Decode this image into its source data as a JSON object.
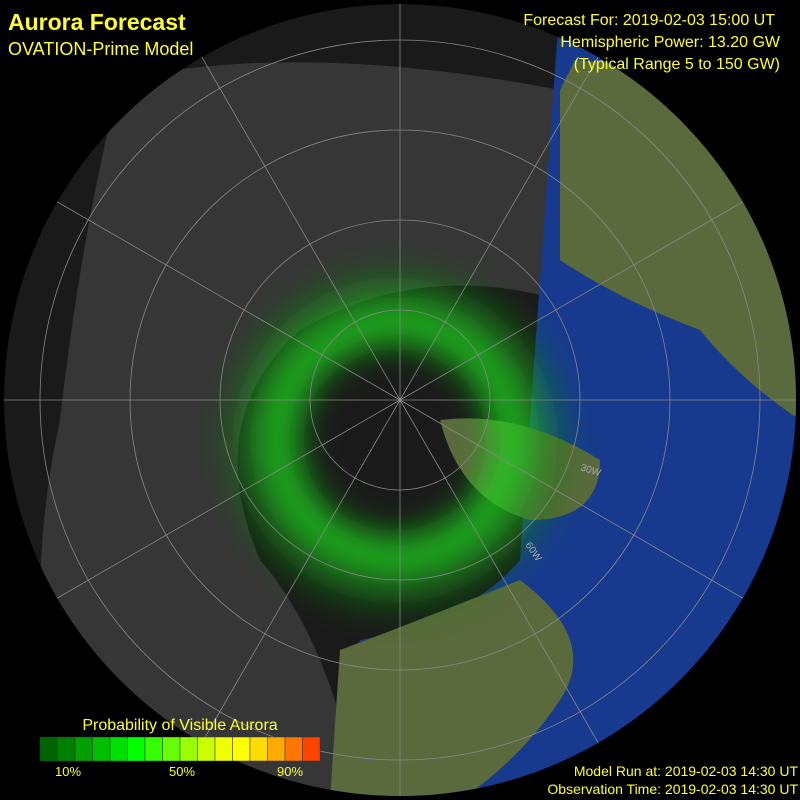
{
  "header": {
    "title": "Aurora Forecast",
    "subtitle": "OVATION-Prime Model"
  },
  "forecast": {
    "time": "Forecast For: 2019-02-03 15:00 UT",
    "power": "Hemispheric Power: 13.20 GW",
    "range": "(Typical Range 5 to 150 GW)"
  },
  "map": {
    "labels": [
      "30W",
      "60W"
    ]
  },
  "legend": {
    "title": "Probability of Visible Aurora",
    "labels": [
      "10%",
      "50%",
      "90%"
    ]
  },
  "footer": {
    "model_run": "Model Run at: 2019-02-03 14:30 UT",
    "observation": "Observation Time: 2019-02-03 14:30 UT"
  }
}
